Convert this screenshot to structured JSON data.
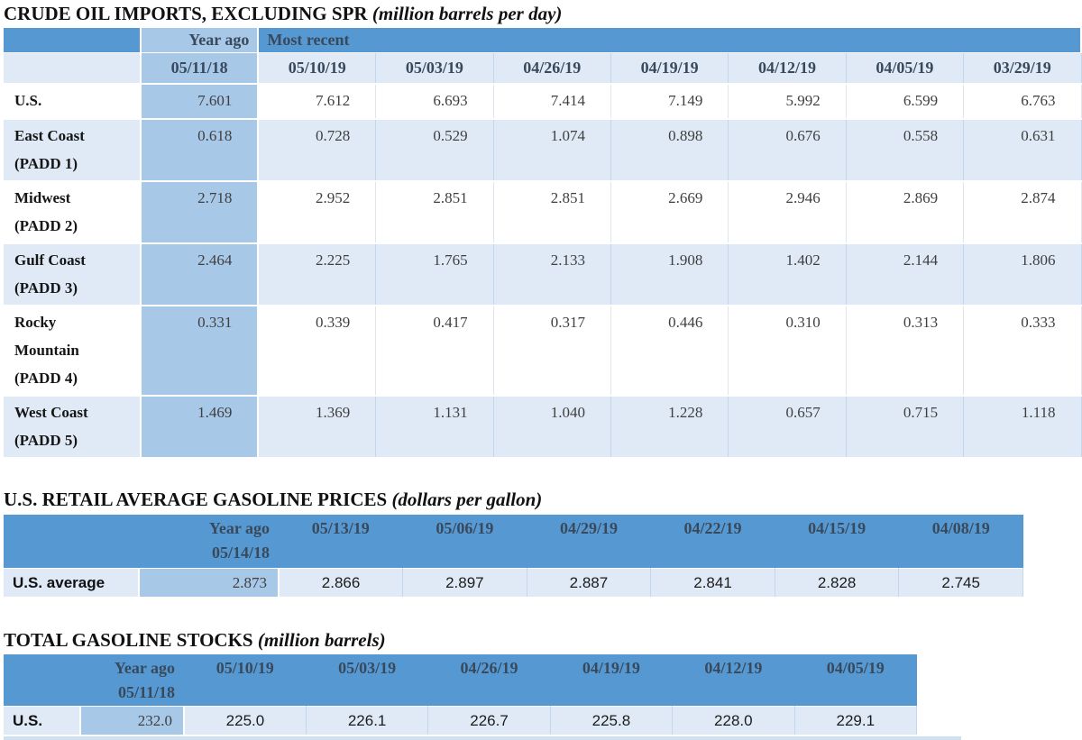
{
  "table1": {
    "title": "CRUDE OIL IMPORTS, EXCLUDING SPR",
    "unit": "(million barrels per day)",
    "year_ago_label": "Year ago",
    "most_recent_label": "Most recent",
    "dates": [
      "05/11/18",
      "05/10/19",
      "05/03/19",
      "04/26/19",
      "04/19/19",
      "04/12/19",
      "04/05/19",
      "03/29/19"
    ],
    "rows": [
      {
        "label": "U.S.",
        "values": [
          "7.601",
          "7.612",
          "6.693",
          "7.414",
          "7.149",
          "5.992",
          "6.599",
          "6.763"
        ]
      },
      {
        "label": "East Coast (PADD 1)",
        "values": [
          "0.618",
          "0.728",
          "0.529",
          "1.074",
          "0.898",
          "0.676",
          "0.558",
          "0.631"
        ]
      },
      {
        "label": "Midwest (PADD 2)",
        "values": [
          "2.718",
          "2.952",
          "2.851",
          "2.851",
          "2.669",
          "2.946",
          "2.869",
          "2.874"
        ]
      },
      {
        "label": "Gulf Coast (PADD 3)",
        "values": [
          "2.464",
          "2.225",
          "1.765",
          "2.133",
          "1.908",
          "1.402",
          "2.144",
          "1.806"
        ]
      },
      {
        "label": "Rocky Mountain (PADD 4)",
        "values": [
          "0.331",
          "0.339",
          "0.417",
          "0.317",
          "0.446",
          "0.310",
          "0.313",
          "0.333"
        ]
      },
      {
        "label": "West Coast (PADD 5)",
        "values": [
          "1.469",
          "1.369",
          "1.131",
          "1.040",
          "1.228",
          "0.657",
          "0.715",
          "1.118"
        ]
      }
    ]
  },
  "table2": {
    "title": "U.S. RETAIL AVERAGE GASOLINE PRICES",
    "unit": "(dollars per gallon)",
    "year_ago_label": "Year ago",
    "year_ago_date": "05/14/18",
    "dates": [
      "05/13/19",
      "05/06/19",
      "04/29/19",
      "04/22/19",
      "04/15/19",
      "04/08/19"
    ],
    "row_label": "U.S. average",
    "year_ago_value": "2.873",
    "values": [
      "2.866",
      "2.897",
      "2.887",
      "2.841",
      "2.828",
      "2.745"
    ]
  },
  "table3": {
    "title": "TOTAL GASOLINE STOCKS",
    "unit": "(million barrels)",
    "year_ago_label": "Year ago",
    "year_ago_date": "05/11/18",
    "dates": [
      "05/10/19",
      "05/03/19",
      "04/26/19",
      "04/19/19",
      "04/12/19",
      "04/05/19"
    ],
    "row_label": "U.S.",
    "year_ago_value": "232.0",
    "values": [
      "225.0",
      "226.1",
      "226.7",
      "225.8",
      "228.0",
      "229.1"
    ]
  }
}
